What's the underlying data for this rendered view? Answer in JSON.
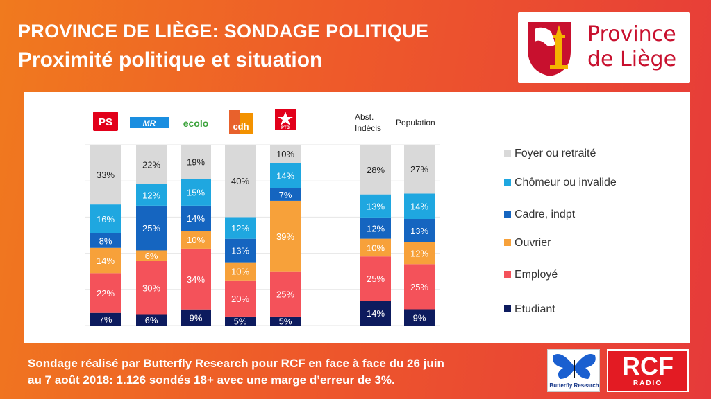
{
  "header": {
    "title": "PROVINCE DE LIÈGE: SONDAGE POLITIQUE",
    "subtitle": "Proximité politique et situation"
  },
  "logo": {
    "line1": "Province",
    "line2": "de Liège"
  },
  "footer": {
    "line1": "Sondage réalisé par Butterfly Research pour RCF en face à face du 26 juin",
    "line2": "au 7 août 2018:  1.126 sondés 18+ avec une marge d’erreur de 3%."
  },
  "badges": {
    "butterfly": "Butterfly Research",
    "rcf_main": "RCF",
    "rcf_sub": "RADIO"
  },
  "party_logos": [
    "PS",
    "MR",
    "ecolo",
    "cdh",
    "PTB"
  ],
  "colors": {
    "accent": "#e63a3a",
    "brand_red": "#c8102e"
  },
  "chart_data": {
    "type": "bar",
    "stacked": true,
    "normalized": true,
    "categories": [
      "PS",
      "MR",
      "ecolo",
      "cdh",
      "PTB",
      "Abst. Indécis",
      "Population"
    ],
    "category_labels_text": [
      "",
      "",
      "",
      "",
      "",
      "Abst.\nIndécis",
      "Population"
    ],
    "series": [
      {
        "name": "Etudiant",
        "color": "#0d1b5e",
        "values": [
          7,
          6,
          9,
          5,
          5,
          14,
          9
        ]
      },
      {
        "name": "Employé",
        "color": "#f4525a",
        "values": [
          22,
          30,
          34,
          20,
          25,
          25,
          25
        ]
      },
      {
        "name": "Ouvrier",
        "color": "#f7a13a",
        "values": [
          14,
          6,
          10,
          10,
          39,
          10,
          12
        ]
      },
      {
        "name": "Cadre, indpt",
        "color": "#1565c0",
        "values": [
          8,
          25,
          14,
          13,
          7,
          12,
          13
        ]
      },
      {
        "name": "Chômeur ou invalide",
        "color": "#1fa7e0",
        "values": [
          16,
          12,
          15,
          12,
          14,
          13,
          14
        ]
      },
      {
        "name": "Foyer ou retraité",
        "color": "#d9d9d9",
        "values": [
          33,
          22,
          19,
          40,
          10,
          28,
          27
        ]
      }
    ],
    "legend_order": [
      "Foyer ou retraité",
      "Chômeur ou invalide",
      "Cadre, indpt",
      "Ouvrier",
      "Employé",
      "Etudiant"
    ],
    "legend_position": "right",
    "value_suffix": "%",
    "grid": true
  }
}
